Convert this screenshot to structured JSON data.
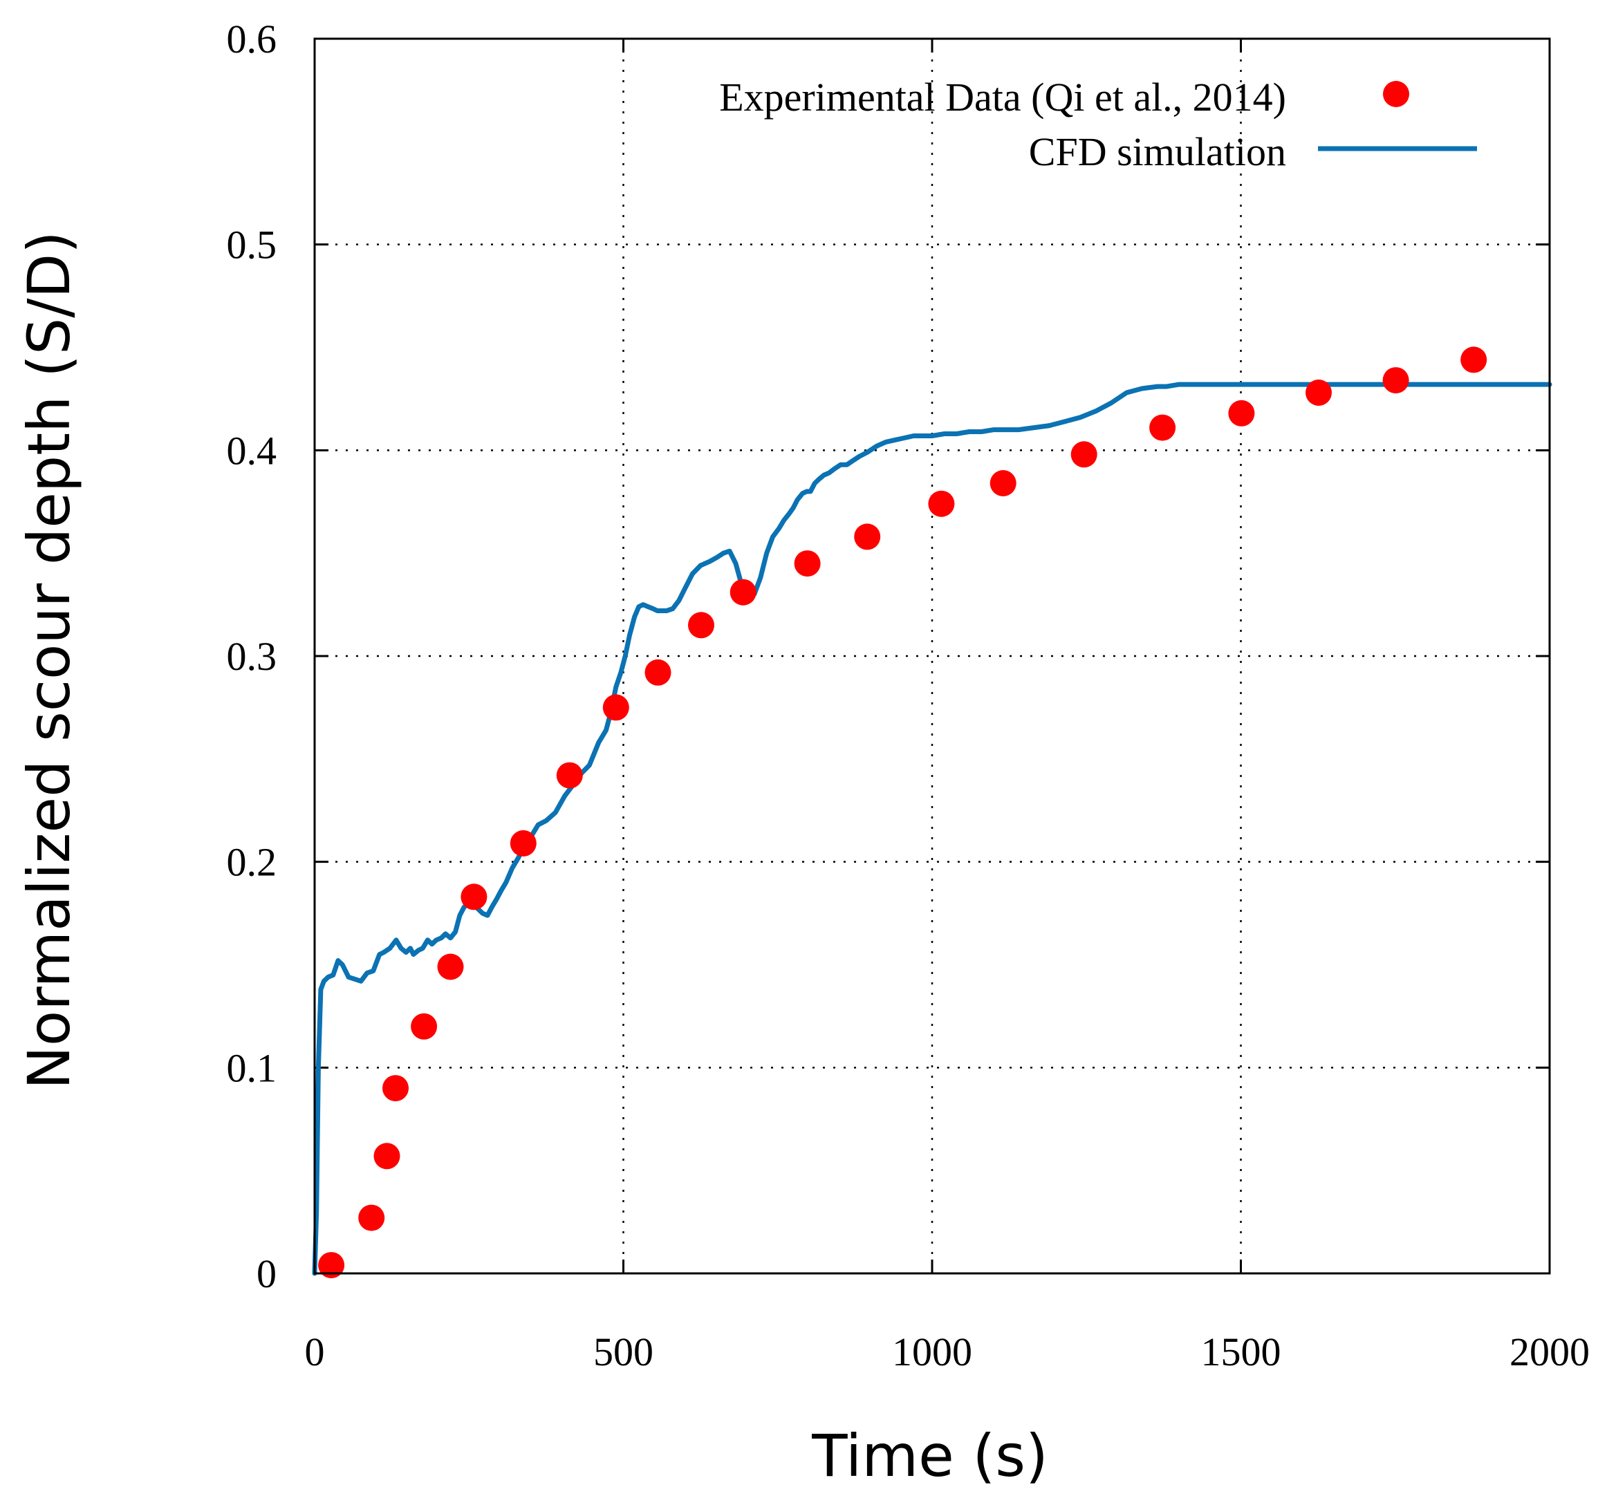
{
  "chart_data": {
    "type": "scatter",
    "title": "",
    "xlabel": "Time (s)",
    "ylabel": "Normalized scour depth (S/D)",
    "xlim": [
      0,
      2000
    ],
    "ylim": [
      0,
      0.6
    ],
    "xticks": [
      0,
      500,
      1000,
      1500,
      2000
    ],
    "xtick_labels": [
      "0",
      "500",
      "1000",
      "1500",
      "2000"
    ],
    "yticks": [
      0,
      0.1,
      0.2,
      0.3,
      0.4,
      0.5,
      0.6
    ],
    "ytick_labels": [
      "0",
      "0.1",
      "0.2",
      "0.3",
      "0.4",
      "0.5",
      "0.6"
    ],
    "grid": true,
    "legend_position": "top-right",
    "series": [
      {
        "name": "Experimental Data (Qi et al., 2014)",
        "kind": "scatter",
        "color": "#ff0000",
        "x": [
          27,
          92,
          117,
          131,
          177,
          220,
          258,
          338,
          413,
          488,
          556,
          626,
          694,
          798,
          895,
          1015,
          1115,
          1246,
          1373,
          1501,
          1626,
          1751,
          1877
        ],
        "y": [
          0.004,
          0.027,
          0.057,
          0.09,
          0.12,
          0.149,
          0.183,
          0.209,
          0.242,
          0.275,
          0.292,
          0.315,
          0.331,
          0.345,
          0.358,
          0.374,
          0.384,
          0.398,
          0.411,
          0.418,
          0.428,
          0.434,
          0.444
        ]
      },
      {
        "name": "CFD simulation",
        "kind": "line",
        "color": "#0b72b3",
        "x": [
          0,
          3,
          6,
          10,
          15,
          22,
          30,
          38,
          45,
          55,
          65,
          75,
          85,
          95,
          105,
          112,
          122,
          132,
          140,
          148,
          155,
          160,
          168,
          175,
          183,
          190,
          197,
          205,
          212,
          220,
          228,
          235,
          242,
          250,
          258,
          265,
          272,
          280,
          287,
          295,
          302,
          310,
          320,
          330,
          340,
          350,
          362,
          375,
          390,
          405,
          420,
          432,
          445,
          460,
          472,
          480,
          488,
          496,
          503,
          510,
          518,
          525,
          532,
          540,
          548,
          555,
          562,
          570,
          580,
          590,
          600,
          612,
          625,
          640,
          652,
          662,
          672,
          682,
          692,
          702,
          712,
          722,
          732,
          742,
          752,
          760,
          768,
          775,
          782,
          790,
          797,
          803,
          810,
          817,
          825,
          833,
          842,
          852,
          862,
          872,
          882,
          895,
          910,
          925,
          940,
          955,
          970,
          985,
          1000,
          1020,
          1040,
          1060,
          1080,
          1100,
          1120,
          1140,
          1165,
          1190,
          1215,
          1240,
          1265,
          1290,
          1315,
          1340,
          1365,
          1380,
          1400,
          1420,
          1440,
          1460,
          1480,
          1500,
          1520,
          1540,
          1560,
          1580,
          1600,
          1625,
          1650,
          1665,
          1680,
          1700,
          1750,
          1800,
          1850,
          1900,
          1950,
          2000
        ],
        "y": [
          0.0,
          0.03,
          0.1,
          0.138,
          0.142,
          0.144,
          0.145,
          0.152,
          0.15,
          0.144,
          0.143,
          0.142,
          0.146,
          0.147,
          0.155,
          0.156,
          0.158,
          0.162,
          0.158,
          0.156,
          0.158,
          0.155,
          0.157,
          0.158,
          0.162,
          0.16,
          0.162,
          0.163,
          0.165,
          0.163,
          0.166,
          0.174,
          0.178,
          0.18,
          0.179,
          0.177,
          0.175,
          0.174,
          0.178,
          0.182,
          0.186,
          0.19,
          0.197,
          0.202,
          0.208,
          0.212,
          0.218,
          0.22,
          0.224,
          0.232,
          0.238,
          0.243,
          0.247,
          0.258,
          0.264,
          0.273,
          0.285,
          0.292,
          0.3,
          0.31,
          0.319,
          0.324,
          0.325,
          0.324,
          0.323,
          0.322,
          0.322,
          0.322,
          0.323,
          0.327,
          0.333,
          0.34,
          0.344,
          0.346,
          0.348,
          0.35,
          0.351,
          0.345,
          0.334,
          0.329,
          0.33,
          0.338,
          0.35,
          0.358,
          0.362,
          0.366,
          0.369,
          0.372,
          0.376,
          0.379,
          0.38,
          0.38,
          0.384,
          0.386,
          0.388,
          0.389,
          0.391,
          0.393,
          0.393,
          0.395,
          0.397,
          0.399,
          0.402,
          0.404,
          0.405,
          0.406,
          0.407,
          0.407,
          0.407,
          0.408,
          0.408,
          0.409,
          0.409,
          0.41,
          0.41,
          0.41,
          0.411,
          0.412,
          0.414,
          0.416,
          0.419,
          0.423,
          0.428,
          0.43,
          0.431,
          0.431,
          0.432,
          0.432,
          0.432,
          0.432,
          0.432,
          0.432,
          0.432,
          0.432,
          0.432,
          0.432,
          0.432,
          0.432,
          0.432,
          0.432,
          0.432,
          0.432,
          0.432,
          0.432,
          0.432,
          0.432,
          0.432,
          0.432
        ]
      }
    ]
  }
}
